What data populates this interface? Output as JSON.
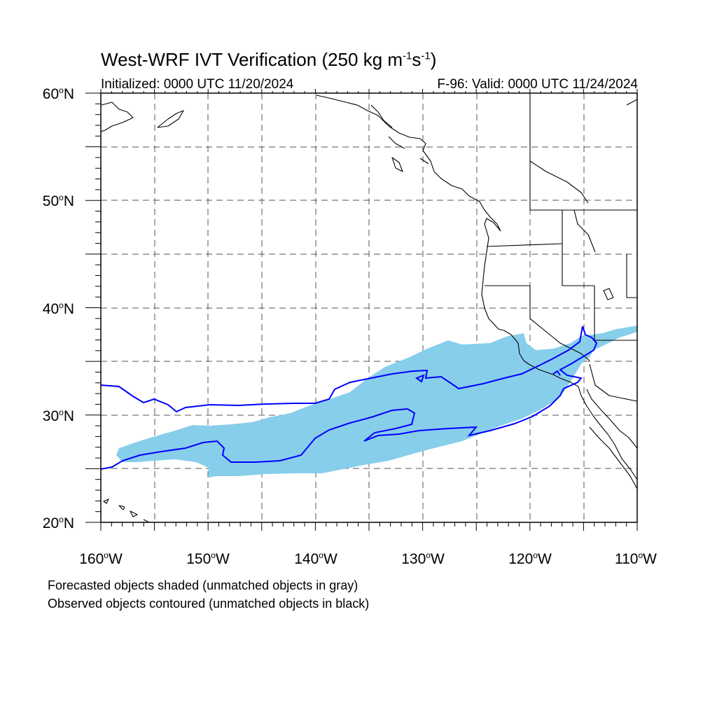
{
  "title": {
    "main": "West-WRF IVT Verification (250 kg m",
    "exp1": "-1",
    "mid": "s",
    "exp2": "-1",
    "close": ")"
  },
  "subtitle": {
    "left": "Initialized: 0000 UTC 11/20/2024",
    "right": "F-96: Valid: 0000 UTC 11/24/2024"
  },
  "map": {
    "lat_range": [
      20,
      60
    ],
    "lon_range": [
      -160,
      -110
    ],
    "lat_labels": [
      {
        "num": "60",
        "hemi": "N"
      },
      {
        "num": "50",
        "hemi": "N"
      },
      {
        "num": "40",
        "hemi": "N"
      },
      {
        "num": "30",
        "hemi": "N"
      },
      {
        "num": "20",
        "hemi": "N"
      }
    ],
    "lon_labels": [
      {
        "num": "160",
        "hemi": "W"
      },
      {
        "num": "150",
        "hemi": "W"
      },
      {
        "num": "140",
        "hemi": "W"
      },
      {
        "num": "130",
        "hemi": "W"
      },
      {
        "num": "120",
        "hemi": "W"
      },
      {
        "num": "110",
        "hemi": "W"
      }
    ],
    "gridlines": "dashed every 5 degrees",
    "colors": {
      "forecast_fill": "#87ceeb",
      "observed_contour": "#0000ff",
      "coastline": "#000000",
      "grid": "#555555"
    }
  },
  "notes": {
    "line1": "Forecasted objects shaded (unmatched objects in gray)",
    "line2": "Observed objects contoured (unmatched objects in black)"
  }
}
